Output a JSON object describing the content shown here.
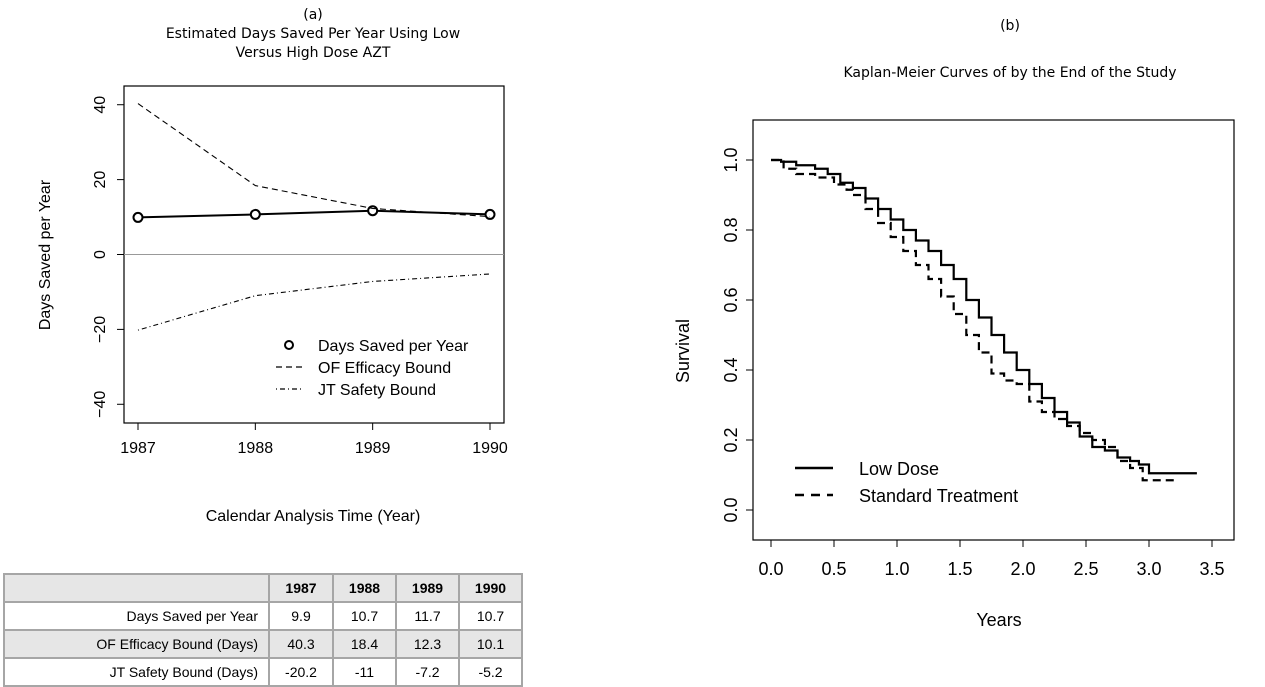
{
  "left_panel": {
    "letter": "(a)",
    "title_line1": "Estimated Days Saved Per Year Using Low",
    "title_line2": "Versus High Dose AZT",
    "xlabel": "Calendar Analysis Time (Year)",
    "ylabel": "Days Saved per Year",
    "x_ticks": [
      "1987",
      "1988",
      "1989",
      "1990"
    ],
    "y_ticks": [
      "−40",
      "−20",
      "0",
      "20",
      "40"
    ],
    "legend": [
      "Days Saved per Year",
      "OF Efficacy Bound",
      "JT Safety Bound"
    ]
  },
  "right_panel": {
    "letter": "(b)",
    "title": "Kaplan-Meier Curves of by the End of the Study",
    "xlabel": "Years",
    "ylabel": "Survival",
    "x_ticks": [
      "0.0",
      "0.5",
      "1.0",
      "1.5",
      "2.0",
      "2.5",
      "3.0",
      "3.5"
    ],
    "y_ticks": [
      "0.0",
      "0.2",
      "0.4",
      "0.6",
      "0.8",
      "1.0"
    ],
    "legend": [
      "Low Dose",
      "Standard Treatment"
    ]
  },
  "table": {
    "headers": [
      "",
      "1987",
      "1988",
      "1989",
      "1990"
    ],
    "rows": [
      [
        "Days Saved per Year",
        "9.9",
        "10.7",
        "11.7",
        "10.7"
      ],
      [
        "OF Efficacy Bound (Days)",
        "40.3",
        "18.4",
        "12.3",
        "10.1"
      ],
      [
        "JT Safety Bound (Days)",
        "-20.2",
        "-11",
        "-7.2",
        "-5.2"
      ]
    ]
  },
  "chart_data": [
    {
      "type": "line",
      "x": [
        1987,
        1988,
        1989,
        1990
      ],
      "series": [
        {
          "name": "Days Saved per Year",
          "values": [
            9.9,
            10.7,
            11.7,
            10.7
          ],
          "style": "solid",
          "markers": "open-circle"
        },
        {
          "name": "OF Efficacy Bound",
          "values": [
            40.3,
            18.4,
            12.3,
            10.1
          ],
          "style": "dashed"
        },
        {
          "name": "JT Safety Bound",
          "values": [
            -20.2,
            -11,
            -7.2,
            -5.2
          ],
          "style": "dash-dot"
        }
      ],
      "reference_line_y": 0,
      "xlim": [
        1987,
        1990
      ],
      "ylim": [
        -45,
        45
      ],
      "legend_position": "bottom-right",
      "colors": {
        "lines": "#000000",
        "reference": "#999999"
      }
    },
    {
      "type": "line",
      "step": true,
      "series": [
        {
          "name": "Low Dose",
          "style": "solid",
          "x": [
            0,
            0.08,
            0.2,
            0.35,
            0.45,
            0.55,
            0.65,
            0.75,
            0.85,
            0.95,
            1.05,
            1.15,
            1.25,
            1.35,
            1.45,
            1.55,
            1.65,
            1.75,
            1.85,
            1.95,
            2.05,
            2.15,
            2.25,
            2.35,
            2.45,
            2.55,
            2.65,
            2.75,
            2.85,
            2.92,
            3.0,
            3.2,
            3.38
          ],
          "y": [
            1.0,
            0.995,
            0.985,
            0.975,
            0.96,
            0.935,
            0.92,
            0.89,
            0.86,
            0.83,
            0.8,
            0.77,
            0.74,
            0.7,
            0.66,
            0.6,
            0.55,
            0.5,
            0.45,
            0.4,
            0.36,
            0.32,
            0.28,
            0.25,
            0.21,
            0.18,
            0.17,
            0.15,
            0.14,
            0.13,
            0.105,
            0.105,
            0.105
          ]
        },
        {
          "name": "Standard Treatment",
          "style": "dashed",
          "x": [
            0,
            0.1,
            0.2,
            0.35,
            0.5,
            0.6,
            0.65,
            0.75,
            0.85,
            0.95,
            1.05,
            1.15,
            1.25,
            1.35,
            1.45,
            1.55,
            1.65,
            1.75,
            1.85,
            1.95,
            2.05,
            2.15,
            2.25,
            2.35,
            2.45,
            2.55,
            2.65,
            2.75,
            2.85,
            2.95,
            3.0,
            3.2
          ],
          "y": [
            1.0,
            0.975,
            0.96,
            0.95,
            0.93,
            0.915,
            0.9,
            0.86,
            0.82,
            0.78,
            0.74,
            0.7,
            0.66,
            0.61,
            0.56,
            0.5,
            0.45,
            0.39,
            0.37,
            0.36,
            0.31,
            0.28,
            0.26,
            0.24,
            0.22,
            0.2,
            0.18,
            0.14,
            0.12,
            0.085,
            0.085,
            0.085
          ]
        }
      ],
      "xlim": [
        0,
        3.5
      ],
      "ylim": [
        0,
        1
      ],
      "legend_position": "bottom-left",
      "colors": {
        "lines": "#000000"
      }
    }
  ]
}
